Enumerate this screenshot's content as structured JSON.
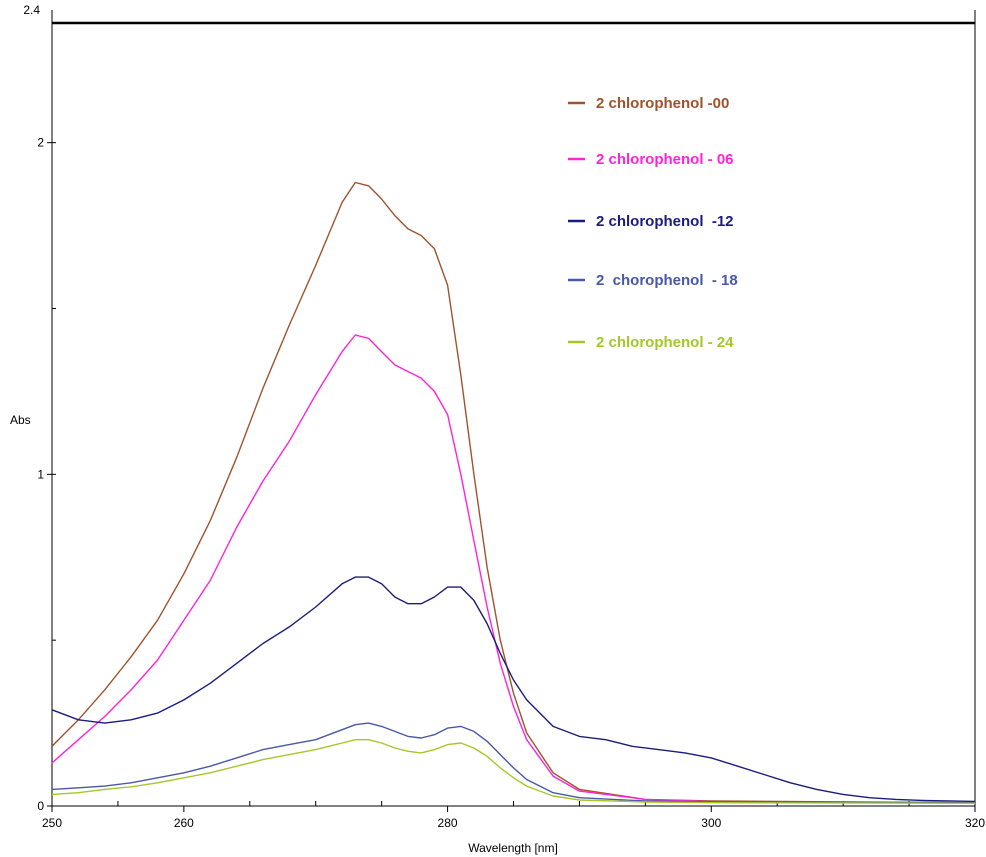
{
  "chart_data": {
    "type": "line",
    "title": "",
    "xlabel": "Wavelength [nm]",
    "ylabel": "Abs",
    "xlim": [
      250,
      320
    ],
    "ylim": [
      0,
      2.4
    ],
    "x_ticks": [
      250,
      260,
      280,
      300,
      320
    ],
    "y_ticks": [
      0,
      1,
      2
    ],
    "y_top_label": "2.4",
    "grid": false,
    "legend_position": "top-right",
    "series": [
      {
        "name": "2 chlorophenol -00",
        "color": "#a0522d",
        "points": [
          [
            250,
            0.18
          ],
          [
            252,
            0.26
          ],
          [
            254,
            0.35
          ],
          [
            256,
            0.45
          ],
          [
            258,
            0.56
          ],
          [
            260,
            0.7
          ],
          [
            262,
            0.86
          ],
          [
            264,
            1.05
          ],
          [
            266,
            1.26
          ],
          [
            268,
            1.45
          ],
          [
            270,
            1.63
          ],
          [
            272,
            1.82
          ],
          [
            273,
            1.88
          ],
          [
            274,
            1.87
          ],
          [
            275,
            1.83
          ],
          [
            276,
            1.78
          ],
          [
            277,
            1.74
          ],
          [
            278,
            1.72
          ],
          [
            279,
            1.68
          ],
          [
            280,
            1.57
          ],
          [
            281,
            1.3
          ],
          [
            282,
            1.0
          ],
          [
            283,
            0.72
          ],
          [
            284,
            0.5
          ],
          [
            285,
            0.34
          ],
          [
            286,
            0.22
          ],
          [
            288,
            0.1
          ],
          [
            290,
            0.05
          ],
          [
            295,
            0.02
          ],
          [
            300,
            0.015
          ],
          [
            320,
            0.01
          ]
        ]
      },
      {
        "name": "2 chlorophenol - 06",
        "color": "#ff22dd",
        "points": [
          [
            250,
            0.13
          ],
          [
            252,
            0.2
          ],
          [
            254,
            0.27
          ],
          [
            256,
            0.35
          ],
          [
            258,
            0.44
          ],
          [
            260,
            0.56
          ],
          [
            262,
            0.68
          ],
          [
            264,
            0.84
          ],
          [
            266,
            0.98
          ],
          [
            268,
            1.1
          ],
          [
            270,
            1.24
          ],
          [
            272,
            1.37
          ],
          [
            273,
            1.42
          ],
          [
            274,
            1.41
          ],
          [
            275,
            1.37
          ],
          [
            276,
            1.33
          ],
          [
            277,
            1.31
          ],
          [
            278,
            1.29
          ],
          [
            279,
            1.25
          ],
          [
            280,
            1.18
          ],
          [
            281,
            1.0
          ],
          [
            282,
            0.8
          ],
          [
            283,
            0.6
          ],
          [
            284,
            0.43
          ],
          [
            285,
            0.3
          ],
          [
            286,
            0.2
          ],
          [
            288,
            0.09
          ],
          [
            290,
            0.045
          ],
          [
            295,
            0.02
          ],
          [
            300,
            0.013
          ],
          [
            320,
            0.01
          ]
        ]
      },
      {
        "name": "2 chlorophenol  -12",
        "color": "#1c1c80",
        "points": [
          [
            250,
            0.29
          ],
          [
            252,
            0.26
          ],
          [
            254,
            0.25
          ],
          [
            256,
            0.26
          ],
          [
            258,
            0.28
          ],
          [
            260,
            0.32
          ],
          [
            262,
            0.37
          ],
          [
            264,
            0.43
          ],
          [
            266,
            0.49
          ],
          [
            268,
            0.54
          ],
          [
            270,
            0.6
          ],
          [
            272,
            0.67
          ],
          [
            273,
            0.69
          ],
          [
            274,
            0.69
          ],
          [
            275,
            0.67
          ],
          [
            276,
            0.63
          ],
          [
            277,
            0.61
          ],
          [
            278,
            0.61
          ],
          [
            279,
            0.63
          ],
          [
            280,
            0.66
          ],
          [
            281,
            0.66
          ],
          [
            282,
            0.62
          ],
          [
            283,
            0.55
          ],
          [
            284,
            0.46
          ],
          [
            285,
            0.38
          ],
          [
            286,
            0.32
          ],
          [
            288,
            0.24
          ],
          [
            290,
            0.21
          ],
          [
            292,
            0.2
          ],
          [
            294,
            0.18
          ],
          [
            296,
            0.17
          ],
          [
            298,
            0.16
          ],
          [
            300,
            0.145
          ],
          [
            302,
            0.12
          ],
          [
            304,
            0.095
          ],
          [
            306,
            0.07
          ],
          [
            308,
            0.05
          ],
          [
            310,
            0.035
          ],
          [
            312,
            0.025
          ],
          [
            314,
            0.02
          ],
          [
            316,
            0.017
          ],
          [
            320,
            0.014
          ]
        ]
      },
      {
        "name": "2  chorophenol  - 18",
        "color": "#4a58a8",
        "points": [
          [
            250,
            0.05
          ],
          [
            252,
            0.055
          ],
          [
            254,
            0.06
          ],
          [
            256,
            0.07
          ],
          [
            258,
            0.085
          ],
          [
            260,
            0.1
          ],
          [
            262,
            0.12
          ],
          [
            264,
            0.145
          ],
          [
            266,
            0.17
          ],
          [
            268,
            0.185
          ],
          [
            270,
            0.2
          ],
          [
            272,
            0.23
          ],
          [
            273,
            0.245
          ],
          [
            274,
            0.25
          ],
          [
            275,
            0.24
          ],
          [
            276,
            0.225
          ],
          [
            277,
            0.21
          ],
          [
            278,
            0.205
          ],
          [
            279,
            0.215
          ],
          [
            280,
            0.235
          ],
          [
            281,
            0.24
          ],
          [
            282,
            0.225
          ],
          [
            283,
            0.195
          ],
          [
            284,
            0.155
          ],
          [
            285,
            0.115
          ],
          [
            286,
            0.08
          ],
          [
            288,
            0.04
          ],
          [
            290,
            0.025
          ],
          [
            295,
            0.015
          ],
          [
            300,
            0.012
          ],
          [
            320,
            0.01
          ]
        ]
      },
      {
        "name": "2 chlorophenol - 24",
        "color": "#a4c828",
        "points": [
          [
            250,
            0.035
          ],
          [
            252,
            0.04
          ],
          [
            254,
            0.05
          ],
          [
            256,
            0.058
          ],
          [
            258,
            0.07
          ],
          [
            260,
            0.085
          ],
          [
            262,
            0.1
          ],
          [
            264,
            0.12
          ],
          [
            266,
            0.14
          ],
          [
            268,
            0.155
          ],
          [
            270,
            0.17
          ],
          [
            272,
            0.19
          ],
          [
            273,
            0.2
          ],
          [
            274,
            0.2
          ],
          [
            275,
            0.19
          ],
          [
            276,
            0.175
          ],
          [
            277,
            0.165
          ],
          [
            278,
            0.16
          ],
          [
            279,
            0.17
          ],
          [
            280,
            0.185
          ],
          [
            281,
            0.19
          ],
          [
            282,
            0.175
          ],
          [
            283,
            0.15
          ],
          [
            284,
            0.115
          ],
          [
            285,
            0.085
          ],
          [
            286,
            0.06
          ],
          [
            288,
            0.03
          ],
          [
            290,
            0.018
          ],
          [
            295,
            0.012
          ],
          [
            300,
            0.01
          ],
          [
            320,
            0.008
          ]
        ]
      }
    ]
  }
}
